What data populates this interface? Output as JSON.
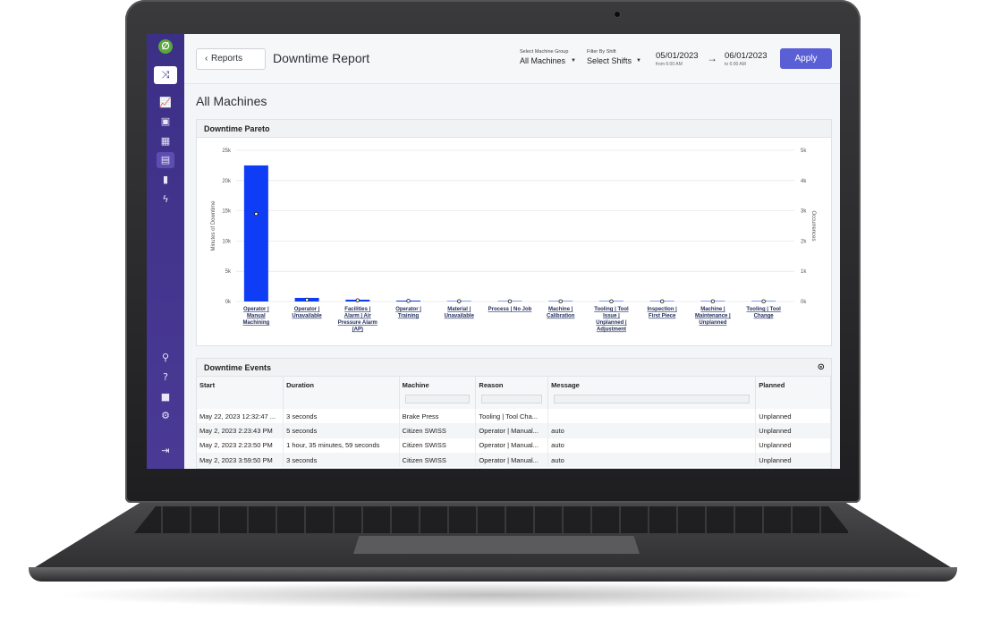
{
  "sidebar": {
    "logo": "∅",
    "icons": [
      "shuffle-icon",
      "line-chart-icon",
      "image-gallery-icon",
      "calendar-icon",
      "report-icon",
      "bar-chart-icon",
      "lightning-icon"
    ],
    "bottom_icons": [
      "search-icon",
      "help-icon",
      "lock-icon",
      "gear-icon",
      "logout-icon"
    ]
  },
  "header": {
    "back_label": "Reports",
    "title": "Downtime Report",
    "machine_group_label": "Select Machine Group",
    "machine_group_value": "All Machines",
    "shift_label": "Filter By Shift",
    "shift_value": "Select Shifts",
    "date_from": "05/01/2023",
    "date_from_sub": "from 6:00 AM",
    "date_to": "06/01/2023",
    "date_to_sub": "to 6:00 AM",
    "apply_label": "Apply"
  },
  "heading": "All Machines",
  "pareto": {
    "title": "Downtime Pareto"
  },
  "chart_data": {
    "type": "bar",
    "title": "",
    "ylabel": "Minutes of Downtime",
    "y2label": "Occurrences",
    "ylim": [
      0,
      25000
    ],
    "y2lim": [
      0,
      5000
    ],
    "yticks": [
      "0k",
      "5k",
      "10k",
      "15k",
      "20k",
      "25k"
    ],
    "y2ticks": [
      "0k",
      "1k",
      "2k",
      "3k",
      "4k",
      "5k"
    ],
    "categories": [
      [
        "Operator |",
        "Manual",
        "Machining"
      ],
      [
        "Operator |",
        "Unavailable"
      ],
      [
        "Facilities |",
        "Alarm | Air",
        "Pressure Alarm",
        "(AP)"
      ],
      [
        "Operator |",
        "Training"
      ],
      [
        "Material |",
        "Unavailable"
      ],
      [
        "Process | No Job"
      ],
      [
        "Machine |",
        "Calibration"
      ],
      [
        "Tooling | Tool",
        "Issue |",
        "Unplanned |",
        "Adjustment"
      ],
      [
        "Inspection |",
        "First Piece"
      ],
      [
        "Machine |",
        "Maintenance |",
        "Unplanned"
      ],
      [
        "Tooling | Tool",
        "Change"
      ]
    ],
    "series": [
      {
        "values": [
          22500,
          600,
          300,
          150,
          20,
          10,
          10,
          5,
          5,
          5,
          5
        ]
      },
      {
        "values": [
          2900,
          60,
          40,
          20,
          10,
          5,
          5,
          5,
          5,
          5,
          5
        ]
      }
    ],
    "grid": true
  },
  "events": {
    "title": "Downtime Events",
    "columns": [
      "Start",
      "Duration",
      "Machine",
      "Reason",
      "Message",
      "Planned"
    ],
    "rows": [
      [
        "May 22, 2023 12:32:47 ...",
        "3 seconds",
        "Brake Press",
        "Tooling | Tool Cha...",
        "",
        "Unplanned"
      ],
      [
        "May 2, 2023 2:23:43 PM",
        "5 seconds",
        "Citizen SWISS",
        "Operator | Manual...",
        "auto",
        "Unplanned"
      ],
      [
        "May 2, 2023 2:23:50 PM",
        "1 hour, 35 minutes, 59 seconds",
        "Citizen SWISS",
        "Operator | Manual...",
        "auto",
        "Unplanned"
      ],
      [
        "May 2, 2023 3:59:50 PM",
        "3 seconds",
        "Citizen SWISS",
        "Operator | Manual...",
        "auto",
        "Unplanned"
      ]
    ]
  }
}
